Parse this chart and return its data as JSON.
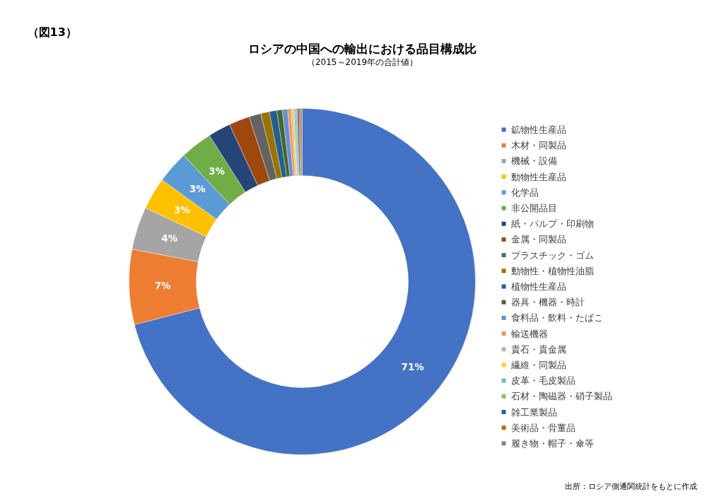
{
  "chart_data": {
    "type": "donut",
    "title": "ロシアの中国への輸出における品目構成比",
    "subtitle": "（2015～2019年の合計値）",
    "annotations": [
      "（図13）",
      "出所：ロシア側通関統計をもとに作成"
    ],
    "categories": [
      "鉱物性生産品",
      "木材・同製品",
      "機械・設備",
      "動物性生産品",
      "化学品",
      "非公開品目",
      "紙・パルプ・印刷物",
      "金属・同製品",
      "プラスチック・ゴム",
      "動物性・植物性油脂",
      "植物性生産品",
      "器具・機器・時計",
      "食料品・飲料・たばこ",
      "輸送機器",
      "貴石・貴金属",
      "繊維・同製品",
      "皮革・毛皮製品",
      "石材・陶磁器・硝子製品",
      "雑工業製品",
      "美術品・骨董品",
      "履き物・帽子・傘等"
    ],
    "values": [
      71,
      7,
      4,
      3,
      3,
      3,
      2.1,
      1.95,
      1.1,
      0.8,
      0.7,
      0.5,
      0.5,
      0.3,
      0.15,
      0.15,
      0.15,
      0.15,
      0.15,
      0.15,
      0.15
    ],
    "colors": [
      "#4472c4",
      "#ed7d31",
      "#a5a5a5",
      "#ffc000",
      "#5b9bd5",
      "#70ad47",
      "#264478",
      "#9e480e",
      "#636363",
      "#997300",
      "#255e91",
      "#43682b",
      "#698ed0",
      "#f1975a",
      "#b7b7b7",
      "#ffcd33",
      "#7cafdd",
      "#8cc168",
      "#335aa1",
      "#d26012",
      "#848484"
    ],
    "value_labels": [
      "71%",
      "7%",
      "4%",
      "3%",
      "3%",
      "3%",
      null,
      null,
      null,
      null,
      null,
      null,
      null,
      null,
      null,
      null,
      null,
      null,
      null,
      null,
      null
    ],
    "legend": "right"
  }
}
